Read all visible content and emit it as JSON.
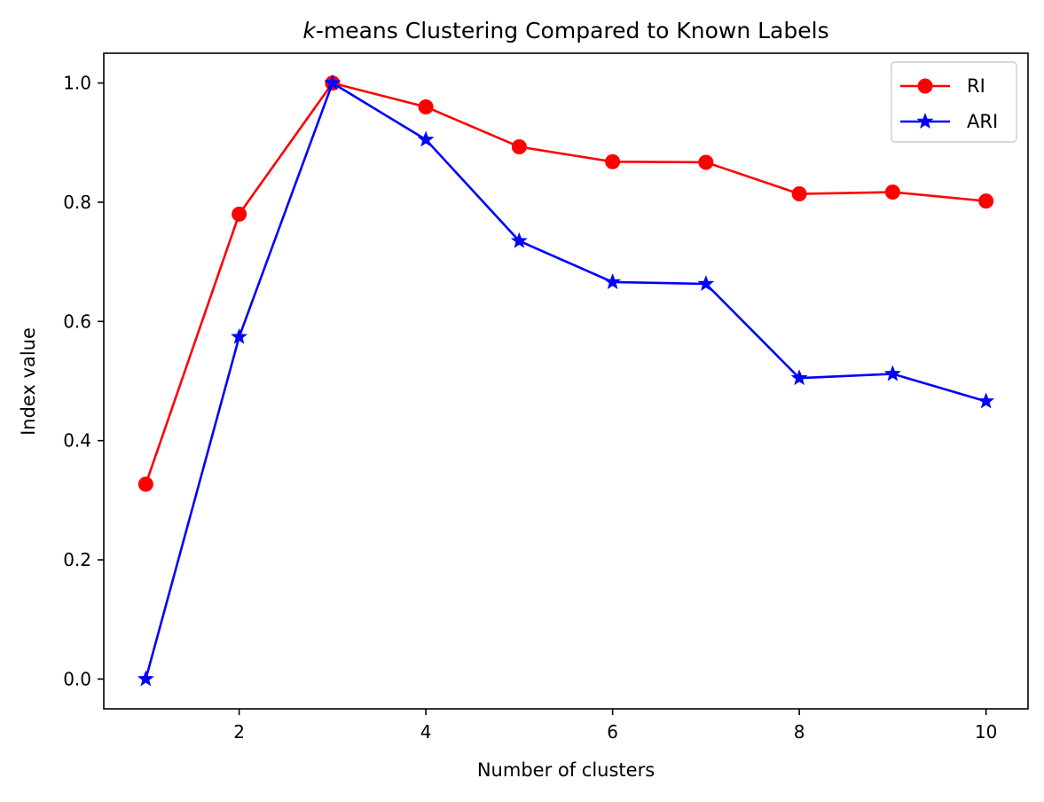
{
  "chart_data": {
    "type": "line",
    "title_italic": "k",
    "title_rest": "-means Clustering Compared to Known Labels",
    "xlabel": "Number of clusters",
    "ylabel": "Index value",
    "x": [
      1,
      2,
      3,
      4,
      5,
      6,
      7,
      8,
      9,
      10
    ],
    "xlim": [
      0.55,
      10.45
    ],
    "ylim": [
      -0.05,
      1.05
    ],
    "xticks": [
      2,
      4,
      6,
      8,
      10
    ],
    "xtick_labels": [
      "2",
      "4",
      "6",
      "8",
      "10"
    ],
    "yticks": [
      0.0,
      0.2,
      0.4,
      0.6,
      0.8,
      1.0
    ],
    "ytick_labels": [
      "0.0",
      "0.2",
      "0.4",
      "0.6",
      "0.8",
      "1.0"
    ],
    "grid": false,
    "legend_position": "top-right",
    "series": [
      {
        "name": "RI",
        "color": "#ff0000",
        "marker": "circle",
        "values": [
          0.327,
          0.78,
          1.0,
          0.96,
          0.893,
          0.868,
          0.867,
          0.814,
          0.817,
          0.802
        ]
      },
      {
        "name": "ARI",
        "color": "#0000ff",
        "marker": "star",
        "values": [
          0.0,
          0.574,
          1.0,
          0.905,
          0.735,
          0.666,
          0.663,
          0.505,
          0.512,
          0.466
        ]
      }
    ]
  }
}
